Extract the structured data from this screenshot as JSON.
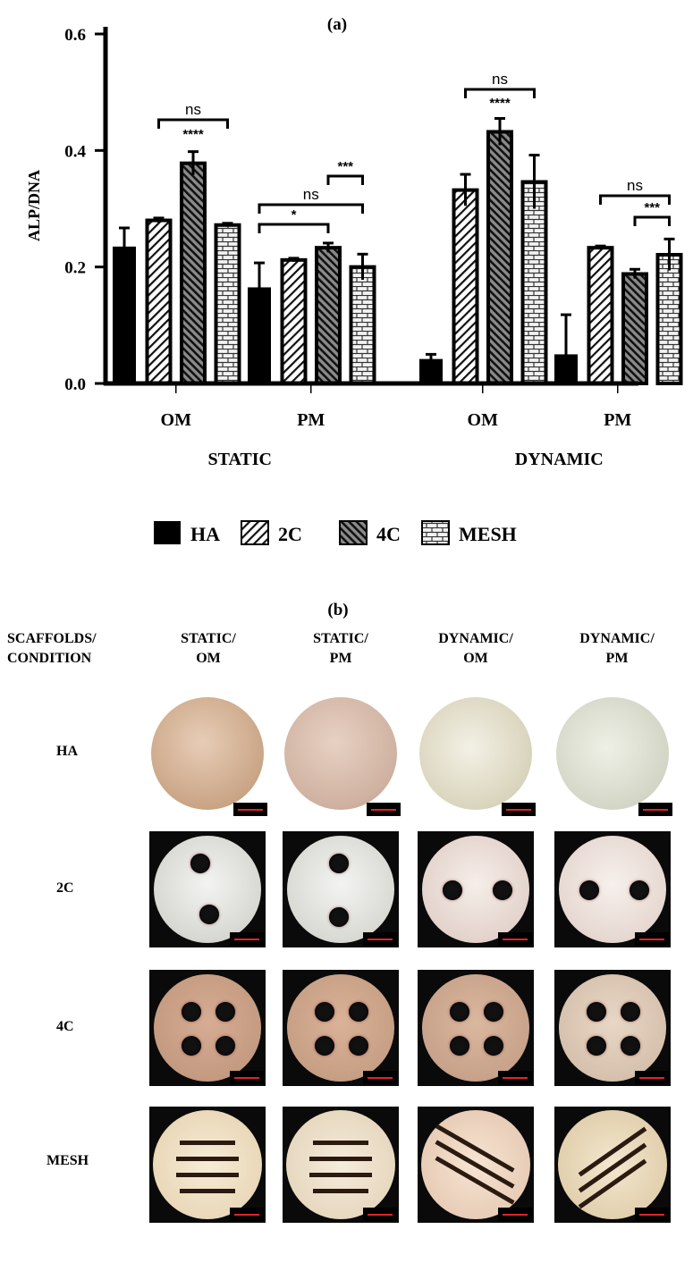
{
  "chart_data": {
    "type": "bar",
    "title": "(a)",
    "ylabel": "ALP/DNA",
    "ylim": [
      0,
      0.6
    ],
    "yticks": [
      "0.0",
      "0.2",
      "0.4",
      "0.6"
    ],
    "groups": [
      {
        "condition": "STATIC",
        "medium": "OM",
        "values": [
          0.235,
          0.28,
          0.378,
          0.272
        ],
        "errors": [
          0.032,
          0.004,
          0.02,
          0.003
        ]
      },
      {
        "condition": "STATIC",
        "medium": "PM",
        "values": [
          0.165,
          0.212,
          0.233,
          0.2
        ],
        "errors": [
          0.042,
          0.003,
          0.008,
          0.022
        ]
      },
      {
        "condition": "DYNAMIC",
        "medium": "OM",
        "values": [
          0.042,
          0.332,
          0.432,
          0.346
        ],
        "errors": [
          0.008,
          0.027,
          0.023,
          0.046
        ]
      },
      {
        "condition": "DYNAMIC",
        "medium": "PM",
        "values": [
          0.05,
          0.233,
          0.188,
          0.221
        ],
        "errors": [
          0.068,
          0.003,
          0.008,
          0.027
        ]
      }
    ],
    "conditions": [
      "STATIC",
      "DYNAMIC"
    ],
    "series": [
      {
        "name": "HA",
        "pattern": "solid"
      },
      {
        "name": "2C",
        "pattern": "hatch-light"
      },
      {
        "name": "4C",
        "pattern": "hatch-dark"
      },
      {
        "name": "MESH",
        "pattern": "brick"
      }
    ],
    "significance": [
      {
        "group": 0,
        "from": 1,
        "to": 3,
        "label": "ns"
      },
      {
        "group": 0,
        "from": 2,
        "to": 2,
        "label": "****"
      },
      {
        "group": 1,
        "from": 0,
        "to": 2,
        "label": "*"
      },
      {
        "group": 1,
        "from": 0,
        "to": 3,
        "label": "ns"
      },
      {
        "group": 1,
        "from": 2,
        "to": 3,
        "label": "***"
      },
      {
        "group": 2,
        "from": 1,
        "to": 3,
        "label": "ns"
      },
      {
        "group": 2,
        "from": 2,
        "to": 2,
        "label": "****"
      },
      {
        "group": 3,
        "from": 1,
        "to": 3,
        "label": "ns"
      },
      {
        "group": 3,
        "from": 2,
        "to": 3,
        "label": "***"
      }
    ],
    "legend_placement": "bottom-center",
    "grid": false
  },
  "panel_b": {
    "title": "(b)",
    "corner_header": "SCAFFOLDS/\nCONDITION",
    "column_headers": [
      "STATIC/\nOM",
      "STATIC/\nPM",
      "DYNAMIC/\nOM",
      "DYNAMIC/\nPM"
    ],
    "row_labels": [
      "HA",
      "2C",
      "4C",
      "MESH"
    ]
  }
}
